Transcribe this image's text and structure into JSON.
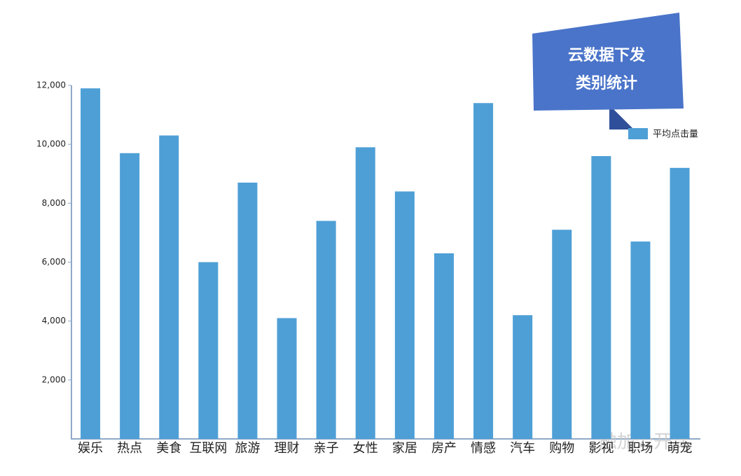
{
  "chart_data": {
    "type": "bar",
    "title_lines": [
      "云数据下发",
      "类别统计"
    ],
    "categories": [
      "娱乐",
      "热点",
      "美食",
      "互联网",
      "旅游",
      "理财",
      "亲子",
      "女性",
      "家居",
      "房产",
      "情感",
      "汽车",
      "购物",
      "影视",
      "职场",
      "萌宠"
    ],
    "series": [
      {
        "name": "平均点击量",
        "color": "#4e9fd6",
        "values": [
          11900,
          9700,
          10300,
          6000,
          8700,
          4100,
          7400,
          9900,
          8400,
          6300,
          11400,
          4200,
          7100,
          9600,
          6700,
          9200
        ]
      }
    ],
    "ylim": [
      0,
      12000
    ],
    "yticks": [
      {
        "value": 2000,
        "label": "2,000"
      },
      {
        "value": 4000,
        "label": "4,000"
      },
      {
        "value": 6000,
        "label": "6,000"
      },
      {
        "value": 8000,
        "label": "8,000"
      },
      {
        "value": 10000,
        "label": "10,000"
      },
      {
        "value": 12000,
        "label": "12,000"
      }
    ],
    "watermark": "触加公开课"
  }
}
